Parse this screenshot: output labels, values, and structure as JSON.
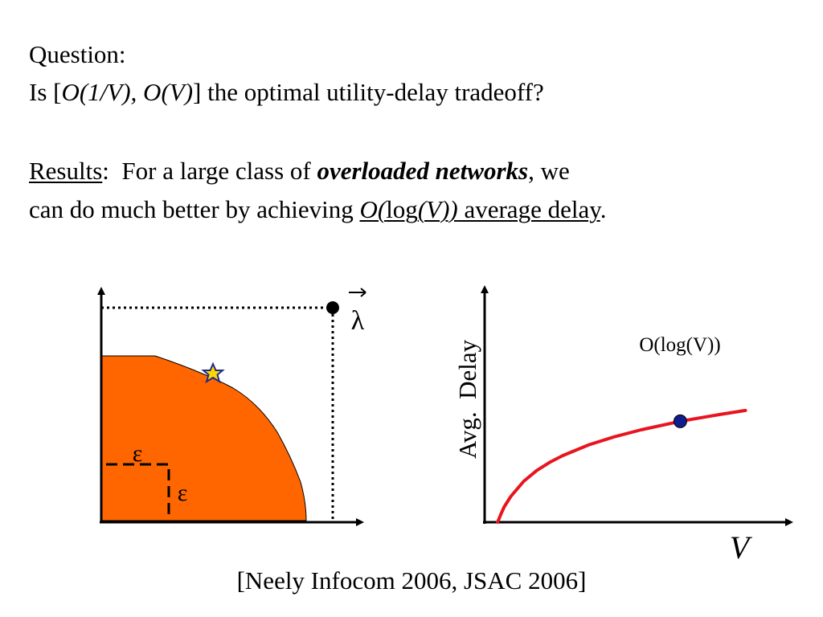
{
  "question": {
    "heading": "Question:",
    "prefix": "Is [",
    "pair": "O(1/V), O(V)",
    "suffix": "] the optimal utility-delay tradeoff?"
  },
  "results": {
    "label": "Results",
    "colon": ":  For a large class of ",
    "emphasis": "overloaded networks",
    "after_emphasis": ", we",
    "line2_prefix": "can do much better by achieving ",
    "big_o_open": "O(",
    "log": "log",
    "v_close": "(V))",
    "avg_delay": " average delay",
    "period": "."
  },
  "left_diagram": {
    "lambda_label": "λ",
    "epsilon_top": "ε",
    "epsilon_right": "ε",
    "region_color": "#ff6600",
    "star_color": "#ffd700"
  },
  "right_chart": {
    "ylabel": "Avg.  Delay",
    "xlabel": "V",
    "annotation": "O(log(V))",
    "curve_color": "#e8141e",
    "point_color": "#0f1e8c"
  },
  "chart_data": {
    "type": "line",
    "title": "",
    "xlabel": "V",
    "ylabel": "Avg.  Delay",
    "axis_ticks": "none",
    "series": [
      {
        "values": [
          {
            "x": 1,
            "y": 0
          },
          {
            "x": 1.25,
            "y": 0.22
          },
          {
            "x": 1.5,
            "y": 0.41
          },
          {
            "x": 2,
            "y": 0.69
          },
          {
            "x": 3,
            "y": 1.1
          },
          {
            "x": 4,
            "y": 1.39
          },
          {
            "x": 5,
            "y": 1.61
          },
          {
            "x": 6,
            "y": 1.79
          },
          {
            "x": 8,
            "y": 2.08
          },
          {
            "x": 10,
            "y": 2.3
          },
          {
            "x": 12,
            "y": 2.48
          },
          {
            "x": 15,
            "y": 2.71
          },
          {
            "x": 18,
            "y": 2.89
          },
          {
            "x": 20,
            "y": 3.0
          }
        ]
      }
    ],
    "highlight_point": {
      "x": 15,
      "y": 2.71
    },
    "xlim": [
      0,
      22
    ],
    "ylim": [
      0,
      5.5
    ]
  }
}
